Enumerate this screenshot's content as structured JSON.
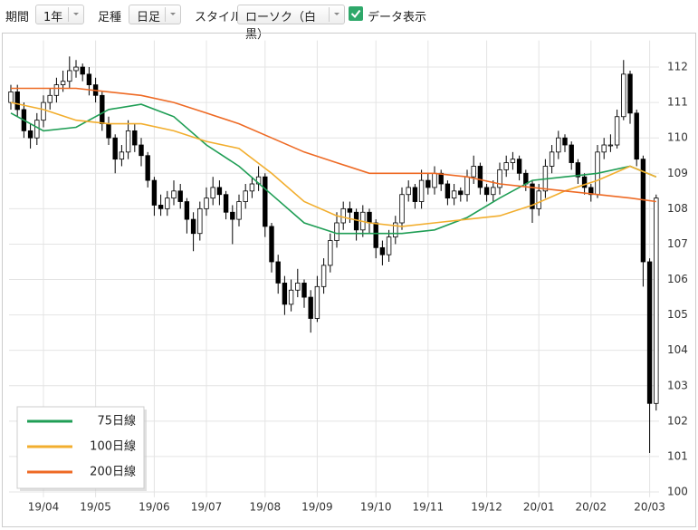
{
  "ui": {
    "period_label": "期間",
    "period": "1年",
    "bar_label": "足種",
    "bar": "日足",
    "style_label": "スタイル",
    "style": "ローソク（白黒）",
    "show_data": "データ表示"
  },
  "chart_data": {
    "type": "candlestick",
    "categories": [
      null,
      null,
      null,
      null,
      null,
      "19/04",
      null,
      null,
      null,
      null,
      null,
      null,
      null,
      "19/05",
      null,
      null,
      null,
      null,
      null,
      null,
      null,
      null,
      "19/06",
      null,
      null,
      null,
      null,
      null,
      null,
      null,
      "19/07",
      null,
      null,
      null,
      null,
      null,
      null,
      null,
      null,
      "19/08",
      null,
      null,
      null,
      null,
      null,
      null,
      null,
      "19/09",
      null,
      null,
      null,
      null,
      null,
      null,
      null,
      null,
      "19/10",
      null,
      null,
      null,
      null,
      null,
      null,
      null,
      "19/11",
      null,
      null,
      null,
      null,
      null,
      null,
      null,
      null,
      "19/12",
      null,
      null,
      null,
      null,
      null,
      null,
      null,
      "20/01",
      null,
      null,
      null,
      null,
      null,
      null,
      null,
      "20/02",
      null,
      null,
      null,
      null,
      null,
      null,
      null,
      null,
      "20/03",
      null
    ],
    "open": [
      111.0,
      111.3,
      110.8,
      110.2,
      110.0,
      110.5,
      111.0,
      111.2,
      111.5,
      111.6,
      111.9,
      112.0,
      111.8,
      111.5,
      111.2,
      110.4,
      110.0,
      109.4,
      109.6,
      110.2,
      109.8,
      109.5,
      108.8,
      108.1,
      108.0,
      108.3,
      108.5,
      108.2,
      107.7,
      107.3,
      108.0,
      108.3,
      108.6,
      108.4,
      107.9,
      107.7,
      108.2,
      108.5,
      108.7,
      108.9,
      107.5,
      106.5,
      105.9,
      105.3,
      105.7,
      105.9,
      105.5,
      104.9,
      105.8,
      106.4,
      107.1,
      107.6,
      108.0,
      107.9,
      107.4,
      107.9,
      107.6,
      106.9,
      106.7,
      107.2,
      107.6,
      108.4,
      108.6,
      108.2,
      108.8,
      108.6,
      109.0,
      108.7,
      108.3,
      108.5,
      108.4,
      108.9,
      109.2,
      108.6,
      108.4,
      108.6,
      109.1,
      109.3,
      109.4,
      109.0,
      108.7,
      108.0,
      108.5,
      109.2,
      109.6,
      110.0,
      109.8,
      109.3,
      108.9,
      108.6,
      108.4,
      109.6,
      109.8,
      109.8,
      110.6,
      111.8,
      110.7,
      109.4,
      106.5,
      102.5
    ],
    "high": [
      111.5,
      111.5,
      111.0,
      110.4,
      110.7,
      111.2,
      111.4,
      111.7,
      111.9,
      112.3,
      112.2,
      112.1,
      112.0,
      111.7,
      111.3,
      110.6,
      110.1,
      109.8,
      110.5,
      110.4,
      110.0,
      109.6,
      108.9,
      108.4,
      108.5,
      108.8,
      108.7,
      108.3,
      107.9,
      108.2,
      108.6,
      108.9,
      108.8,
      108.5,
      108.1,
      108.4,
      108.7,
      108.9,
      109.2,
      109.0,
      107.6,
      106.7,
      106.1,
      106.0,
      106.3,
      106.0,
      105.7,
      106.1,
      106.6,
      107.3,
      107.9,
      108.2,
      108.2,
      108.0,
      108.1,
      108.0,
      107.7,
      107.1,
      107.4,
      107.8,
      108.6,
      108.8,
      108.7,
      109.1,
      109.0,
      109.2,
      109.1,
      108.8,
      108.7,
      108.6,
      109.1,
      109.5,
      109.3,
      108.7,
      108.8,
      109.3,
      109.5,
      109.6,
      109.5,
      109.1,
      108.8,
      108.7,
      109.4,
      109.8,
      110.2,
      110.1,
      109.9,
      109.4,
      109.0,
      108.7,
      109.8,
      110.0,
      110.1,
      110.8,
      112.2,
      111.9,
      110.8,
      109.5,
      106.6,
      108.4
    ],
    "low": [
      110.8,
      110.6,
      110.0,
      109.7,
      109.8,
      110.3,
      110.8,
      111.0,
      111.3,
      111.4,
      111.7,
      111.6,
      111.2,
      111.0,
      110.2,
      109.8,
      109.0,
      109.2,
      109.4,
      109.6,
      109.2,
      108.6,
      107.8,
      107.8,
      107.8,
      108.1,
      108.0,
      107.3,
      106.8,
      107.1,
      107.8,
      108.1,
      108.1,
      107.7,
      107.0,
      107.5,
      108.0,
      108.3,
      108.5,
      107.2,
      106.2,
      105.6,
      105.0,
      105.1,
      105.5,
      105.2,
      104.5,
      104.8,
      105.6,
      106.2,
      106.9,
      107.4,
      107.6,
      107.1,
      107.2,
      107.3,
      106.6,
      106.4,
      106.5,
      107.0,
      107.4,
      108.2,
      108.0,
      108.0,
      108.4,
      108.4,
      108.5,
      108.1,
      108.1,
      108.2,
      108.2,
      108.7,
      108.4,
      108.2,
      108.2,
      108.4,
      108.9,
      109.1,
      108.8,
      108.5,
      107.6,
      107.8,
      108.3,
      109.0,
      109.4,
      109.6,
      109.1,
      108.7,
      108.4,
      108.2,
      108.3,
      109.4,
      109.6,
      109.7,
      110.5,
      110.4,
      109.2,
      105.8,
      101.1,
      102.3
    ],
    "close": [
      111.3,
      110.8,
      110.2,
      110.0,
      110.5,
      111.0,
      111.2,
      111.5,
      111.6,
      111.9,
      112.0,
      111.8,
      111.5,
      111.2,
      110.4,
      110.0,
      109.4,
      109.6,
      110.2,
      109.8,
      109.5,
      108.8,
      108.1,
      108.0,
      108.3,
      108.5,
      108.2,
      107.7,
      107.3,
      108.0,
      108.3,
      108.6,
      108.4,
      107.9,
      107.7,
      108.2,
      108.5,
      108.7,
      108.9,
      107.5,
      106.5,
      105.9,
      105.3,
      105.7,
      105.9,
      105.5,
      104.9,
      105.8,
      106.4,
      107.1,
      107.6,
      108.0,
      107.9,
      107.4,
      107.9,
      107.6,
      106.9,
      106.7,
      107.2,
      107.6,
      108.4,
      108.6,
      108.2,
      108.8,
      108.6,
      109.0,
      108.7,
      108.3,
      108.5,
      108.4,
      108.9,
      109.2,
      108.6,
      108.4,
      108.6,
      109.1,
      109.3,
      109.4,
      109.0,
      108.7,
      108.0,
      108.5,
      109.2,
      109.6,
      110.0,
      109.8,
      109.3,
      108.9,
      108.6,
      108.4,
      109.6,
      109.8,
      109.8,
      110.6,
      111.8,
      110.7,
      109.4,
      106.5,
      102.5,
      108.3
    ],
    "up_color": "#ffffff",
    "down_color": "#000000",
    "series": [
      {
        "name": "75日線",
        "color": "#1f9e55",
        "x": [
          0,
          5,
          10,
          15,
          20,
          25,
          30,
          35,
          40,
          45,
          50,
          55,
          60,
          65,
          70,
          75,
          80,
          85,
          90,
          95,
          99
        ],
        "values": [
          110.7,
          110.2,
          110.3,
          110.8,
          110.95,
          110.6,
          109.8,
          109.2,
          108.4,
          107.6,
          107.3,
          107.3,
          107.3,
          107.4,
          107.75,
          108.3,
          108.8,
          108.9,
          109.0,
          109.2,
          108.9
        ]
      },
      {
        "name": "100日線",
        "color": "#f2ae2e",
        "x": [
          0,
          5,
          10,
          15,
          20,
          25,
          30,
          35,
          40,
          45,
          50,
          55,
          60,
          65,
          70,
          75,
          80,
          85,
          90,
          95,
          99
        ],
        "values": [
          111.0,
          110.8,
          110.5,
          110.4,
          110.4,
          110.2,
          109.9,
          109.7,
          109.0,
          108.2,
          107.8,
          107.6,
          107.5,
          107.6,
          107.7,
          107.8,
          108.1,
          108.5,
          108.8,
          109.2,
          108.9
        ]
      },
      {
        "name": "200日線",
        "color": "#ee6a24",
        "x": [
          0,
          5,
          10,
          15,
          20,
          25,
          30,
          35,
          40,
          45,
          50,
          55,
          60,
          65,
          70,
          75,
          80,
          85,
          90,
          95,
          99
        ],
        "values": [
          111.4,
          111.4,
          111.4,
          111.3,
          111.2,
          111.0,
          110.7,
          110.4,
          110.0,
          109.6,
          109.3,
          109.0,
          109.0,
          109.0,
          108.9,
          108.7,
          108.6,
          108.5,
          108.4,
          108.3,
          108.2
        ]
      }
    ],
    "ylim": [
      99.9,
      112.6
    ],
    "yticks": [
      100,
      101,
      102,
      103,
      104,
      105,
      106,
      107,
      108,
      109,
      110,
      111,
      112
    ],
    "grid": true,
    "legend": "lower-left"
  }
}
